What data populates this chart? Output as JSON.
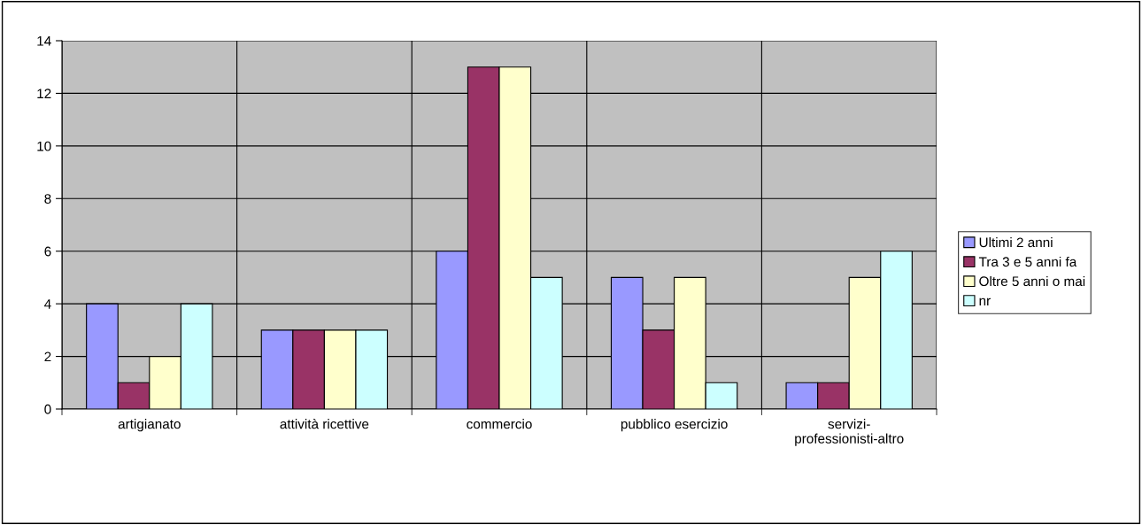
{
  "chart_data": {
    "type": "bar",
    "categories": [
      "artigianato",
      "attività ricettive",
      "commercio",
      "pubblico esercizio",
      "servizi-\nprofessionisti-altro"
    ],
    "series": [
      {
        "name": "Ultimi 2 anni",
        "color": "#9999ff",
        "values": [
          4,
          3,
          6,
          5,
          1
        ]
      },
      {
        "name": "Tra 3 e 5 anni fa",
        "color": "#993366",
        "values": [
          1,
          3,
          13,
          3,
          1
        ]
      },
      {
        "name": "Oltre 5 anni o mai",
        "color": "#ffffcc",
        "values": [
          2,
          3,
          13,
          5,
          5
        ]
      },
      {
        "name": "nr",
        "color": "#ccffff",
        "values": [
          4,
          3,
          5,
          1,
          6
        ]
      }
    ],
    "ylim": [
      0,
      14
    ],
    "yticks": [
      0,
      2,
      4,
      6,
      8,
      10,
      12,
      14
    ],
    "grid": true,
    "legend": "right"
  }
}
